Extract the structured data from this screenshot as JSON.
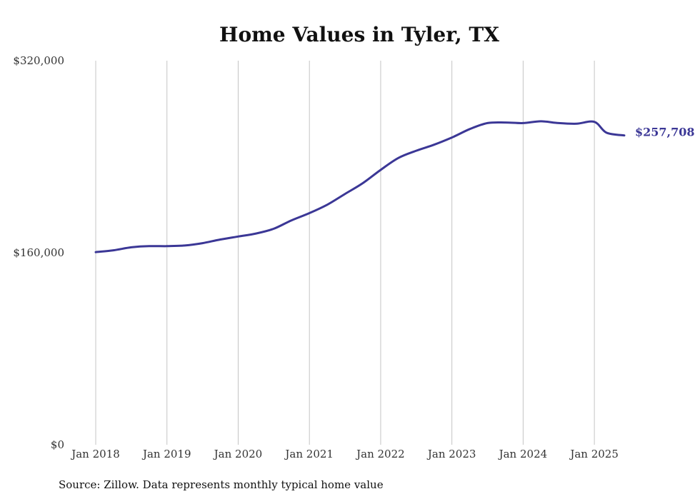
{
  "chart_data": {
    "type": "line",
    "title": "Home Values in Tyler, TX",
    "source": "Source: Zillow. Data represents monthly typical home value",
    "xlabel": "",
    "ylabel": "",
    "ylim": [
      0,
      320000
    ],
    "y_ticks": [
      {
        "value": 0,
        "label": "$0"
      },
      {
        "value": 160000,
        "label": "$160,000"
      },
      {
        "value": 320000,
        "label": "$320,000"
      }
    ],
    "x_ticks": [
      {
        "value": 2018.0,
        "label": "Jan 2018"
      },
      {
        "value": 2019.0,
        "label": "Jan 2019"
      },
      {
        "value": 2020.0,
        "label": "Jan 2020"
      },
      {
        "value": 2021.0,
        "label": "Jan 2021"
      },
      {
        "value": 2022.0,
        "label": "Jan 2022"
      },
      {
        "value": 2023.0,
        "label": "Jan 2023"
      },
      {
        "value": 2024.0,
        "label": "Jan 2024"
      },
      {
        "value": 2025.0,
        "label": "Jan 2025"
      }
    ],
    "xlim": [
      2018.0,
      2025.42
    ],
    "grid": "vertical",
    "series_color": "#3b3796",
    "end_label": "$257,708",
    "series": [
      {
        "name": "Typical home value",
        "x": [
          2018.0,
          2018.25,
          2018.5,
          2018.75,
          2019.0,
          2019.25,
          2019.5,
          2019.75,
          2020.0,
          2020.25,
          2020.5,
          2020.75,
          2021.0,
          2021.25,
          2021.5,
          2021.75,
          2022.0,
          2022.25,
          2022.5,
          2022.75,
          2023.0,
          2023.25,
          2023.5,
          2023.75,
          2024.0,
          2024.25,
          2024.5,
          2024.75,
          2025.0,
          2025.17,
          2025.42
        ],
        "values": [
          160500,
          162000,
          164500,
          165500,
          165500,
          166000,
          168000,
          171000,
          173500,
          176000,
          180000,
          187000,
          193000,
          200000,
          209000,
          218000,
          229000,
          239000,
          245000,
          250000,
          256000,
          263000,
          268000,
          268500,
          268000,
          269500,
          268000,
          267500,
          269000,
          260000,
          257708
        ]
      }
    ]
  }
}
